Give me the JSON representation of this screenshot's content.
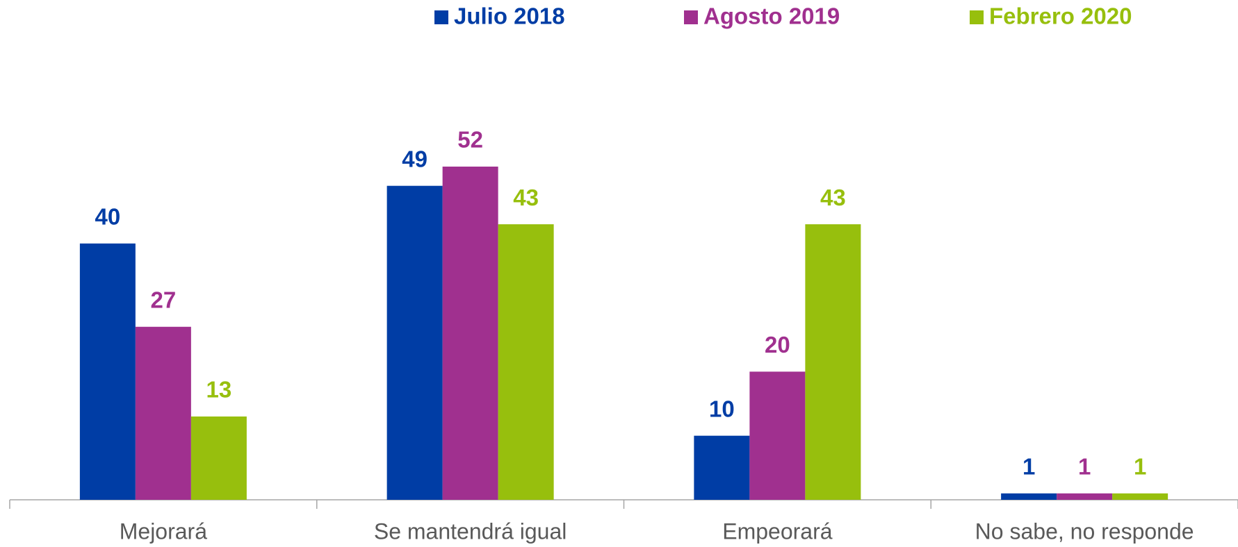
{
  "chart_data": {
    "type": "bar",
    "categories": [
      "Mejorará",
      "Se mantendrá igual",
      "Empeorará",
      "No sabe, no responde"
    ],
    "series": [
      {
        "name": "Julio 2018",
        "color": "#003da5",
        "values": [
          40,
          49,
          10,
          1
        ]
      },
      {
        "name": "Agosto 2019",
        "color": "#a0308f",
        "values": [
          27,
          52,
          20,
          1
        ]
      },
      {
        "name": "Febrero 2020",
        "color": "#97bf0d",
        "values": [
          13,
          43,
          43,
          1
        ]
      }
    ],
    "legend": "top"
  }
}
